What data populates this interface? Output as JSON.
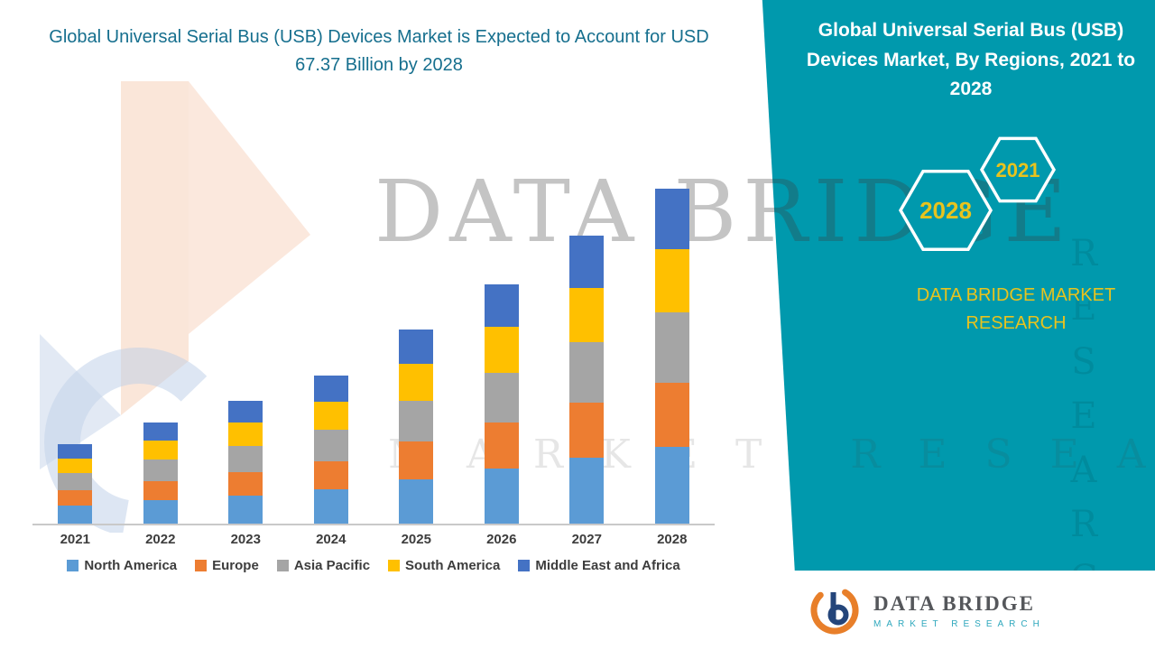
{
  "left": {
    "title": "Global Universal Serial Bus (USB) Devices Market is Expected to Account for USD 67.37 Billion by 2028"
  },
  "chart_data": {
    "type": "bar",
    "stacked": true,
    "title": "Global Universal Serial Bus (USB) Devices Market is Expected to Account for USD 67.37 Billion by 2028",
    "categories": [
      "2021",
      "2022",
      "2023",
      "2024",
      "2025",
      "2026",
      "2027",
      "2028"
    ],
    "series": [
      {
        "name": "North America",
        "color": "#5B9BD5",
        "values": [
          3.7,
          4.7,
          5.7,
          6.9,
          9.0,
          11.1,
          13.3,
          15.5
        ]
      },
      {
        "name": "Europe",
        "color": "#ED7D31",
        "values": [
          3.0,
          3.9,
          4.7,
          5.7,
          7.5,
          9.2,
          11.0,
          12.8
        ]
      },
      {
        "name": "Asia Pacific",
        "color": "#A5A5A5",
        "values": [
          3.4,
          4.3,
          5.2,
          6.3,
          8.2,
          10.1,
          12.2,
          14.2
        ]
      },
      {
        "name": "South America",
        "color": "#FFC000",
        "values": [
          3.0,
          3.9,
          4.7,
          5.7,
          7.4,
          9.2,
          11.0,
          12.8
        ]
      },
      {
        "name": "Middle East and Africa",
        "color": "#4472C4",
        "values": [
          2.9,
          3.6,
          4.4,
          5.3,
          7.0,
          8.7,
          10.5,
          12.07
        ]
      }
    ],
    "xlabel": "",
    "ylabel": "",
    "ylim": [
      0,
      70
    ],
    "grid": false,
    "legend_position": "bottom"
  },
  "side_panel": {
    "title": "Global Universal Serial Bus (USB) Devices Market, By Regions, 2021 to 2028",
    "badges": [
      {
        "label": "2028"
      },
      {
        "label": "2021"
      }
    ],
    "brand": "DATA BRIDGE MARKET RESEARCH"
  },
  "watermarks": {
    "primary": "DATA BRIDGE",
    "secondary": "MARKET RESEARCH",
    "vertical": "RESEARCH"
  },
  "footer_logo": {
    "title": "DATA BRIDGE",
    "subtitle": "MARKET RESEARCH"
  },
  "colors": {
    "panel_teal": "#0099AD",
    "accent_yellow": "#E8C31E",
    "title_teal": "#166F8E"
  }
}
